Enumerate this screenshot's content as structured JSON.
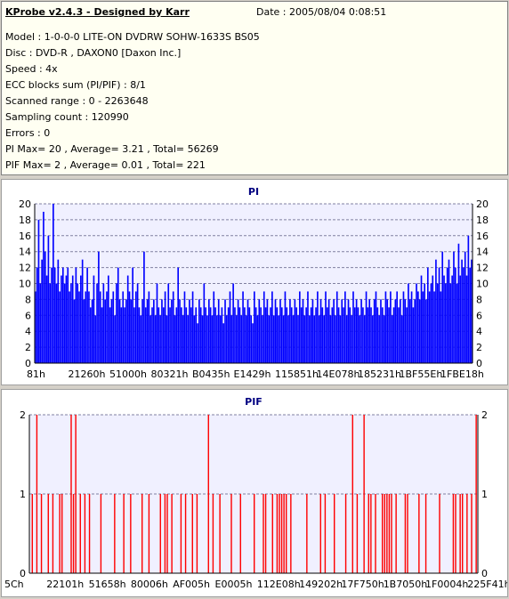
{
  "header": {
    "title": "KProbe v2.4.3 - Designed by Karr",
    "date": "Date : 2005/08/04 0:08:51"
  },
  "info_lines": [
    "Model : 1-0-0-0 LITE-ON DVDRW SOHW-1633S BS05",
    "Disc : DVD-R , DAXON0 [Daxon Inc.]",
    "Speed : 4x",
    "ECC blocks sum (PI/PIF) : 8/1",
    "Scanned range : 0 - 2263648",
    "Sampling count : 120990",
    "Errors : 0",
    "PI Max= 20 , Average= 3.21 , Total= 56269",
    "PIF Max= 2 , Average= 0.01 , Total= 221"
  ],
  "colors": {
    "pi": "#0000ff",
    "pif": "#ff0000",
    "plot_bg": "#f0f0ff",
    "title": "#000080"
  },
  "chart_data": [
    {
      "type": "bar",
      "title": "PI",
      "ylim": [
        0,
        20
      ],
      "yticks": [
        0,
        2,
        4,
        6,
        8,
        10,
        12,
        14,
        16,
        18,
        20
      ],
      "xticks": [
        "81h",
        "21260h",
        "51000h",
        "80321h",
        "B0435h",
        "E1429h",
        "115851h",
        "14E078h",
        "185231h",
        "1BF55Eh",
        "1FBE18h"
      ],
      "grid": true,
      "values": [
        9,
        12,
        18,
        10,
        13,
        19,
        14,
        11,
        16,
        10,
        12,
        20,
        12,
        10,
        13,
        9,
        11,
        12,
        10,
        11,
        12,
        9,
        10,
        11,
        8,
        12,
        10,
        9,
        11,
        13,
        8,
        9,
        12,
        9,
        7,
        8,
        11,
        6,
        10,
        14,
        9,
        7,
        10,
        8,
        9,
        11,
        7,
        8,
        9,
        6,
        10,
        12,
        8,
        7,
        9,
        7,
        8,
        11,
        9,
        8,
        12,
        7,
        9,
        10,
        7,
        6,
        8,
        14,
        7,
        8,
        9,
        6,
        7,
        8,
        6,
        10,
        7,
        6,
        8,
        7,
        9,
        6,
        10,
        7,
        8,
        9,
        6,
        7,
        12,
        8,
        7,
        6,
        9,
        7,
        6,
        8,
        7,
        9,
        6,
        7,
        5,
        8,
        7,
        6,
        10,
        7,
        6,
        8,
        7,
        6,
        9,
        7,
        6,
        8,
        6,
        7,
        5,
        8,
        6,
        7,
        9,
        6,
        10,
        7,
        6,
        8,
        7,
        6,
        9,
        7,
        6,
        8,
        7,
        6,
        5,
        9,
        7,
        6,
        8,
        7,
        6,
        9,
        7,
        8,
        6,
        7,
        9,
        6,
        8,
        7,
        6,
        8,
        7,
        6,
        9,
        7,
        6,
        8,
        7,
        6,
        8,
        7,
        6,
        9,
        7,
        8,
        6,
        7,
        9,
        6,
        7,
        8,
        6,
        7,
        9,
        6,
        8,
        7,
        6,
        9,
        7,
        8,
        6,
        7,
        8,
        6,
        9,
        7,
        6,
        8,
        7,
        9,
        6,
        8,
        7,
        6,
        9,
        7,
        8,
        7,
        6,
        8,
        7,
        6,
        9,
        7,
        8,
        7,
        6,
        8,
        9,
        7,
        6,
        8,
        7,
        6,
        9,
        8,
        7,
        9,
        6,
        7,
        8,
        9,
        7,
        8,
        6,
        9,
        8,
        7,
        10,
        8,
        9,
        7,
        8,
        10,
        9,
        8,
        11,
        9,
        10,
        8,
        12,
        9,
        10,
        11,
        9,
        13,
        10,
        12,
        9,
        14,
        11,
        10,
        12,
        13,
        10,
        11,
        14,
        12,
        10,
        15,
        11,
        13,
        12,
        14,
        11,
        16,
        12,
        13
      ]
    },
    {
      "type": "bar",
      "title": "PIF",
      "ylim": [
        0,
        2
      ],
      "yticks": [
        0,
        1,
        2
      ],
      "xticks": [
        "5Ch",
        "22101h",
        "51658h",
        "80006h",
        "AF005h",
        "E0005h",
        "112E08h",
        "149202h",
        "17F750h",
        "1B7050h",
        "1F0004h",
        "225F41h"
      ],
      "grid": true,
      "values": [
        0,
        1,
        0,
        2,
        0,
        1,
        0,
        0,
        1,
        0,
        1,
        0,
        0,
        1,
        1,
        0,
        0,
        0,
        2,
        1,
        2,
        0,
        1,
        0,
        1,
        0,
        1,
        0,
        0,
        0,
        0,
        1,
        0,
        0,
        0,
        0,
        0,
        1,
        0,
        0,
        0,
        1,
        0,
        0,
        1,
        0,
        0,
        0,
        0,
        1,
        0,
        0,
        1,
        0,
        0,
        0,
        0,
        1,
        0,
        1,
        1,
        0,
        1,
        0,
        0,
        0,
        1,
        0,
        1,
        0,
        0,
        1,
        0,
        1,
        0,
        0,
        0,
        0,
        2,
        0,
        1,
        0,
        0,
        1,
        0,
        0,
        0,
        0,
        1,
        0,
        0,
        0,
        1,
        0,
        0,
        0,
        0,
        0,
        1,
        0,
        0,
        0,
        1,
        1,
        0,
        0,
        1,
        0,
        1,
        1,
        1,
        1,
        1,
        0,
        1,
        0,
        0,
        0,
        0,
        0,
        0,
        1,
        0,
        0,
        0,
        0,
        0,
        1,
        0,
        1,
        0,
        0,
        0,
        1,
        0,
        0,
        0,
        0,
        1,
        0,
        0,
        2,
        0,
        1,
        0,
        0,
        2,
        0,
        1,
        1,
        0,
        1,
        0,
        0,
        1,
        1,
        1,
        1,
        1,
        0,
        1,
        0,
        0,
        0,
        1,
        1,
        0,
        0,
        0,
        0,
        1,
        0,
        0,
        1,
        0,
        0,
        0,
        0,
        0,
        1,
        0,
        0,
        0,
        0,
        0,
        1,
        1,
        0,
        1,
        1,
        0,
        1,
        0,
        1,
        0,
        2
      ]
    }
  ]
}
